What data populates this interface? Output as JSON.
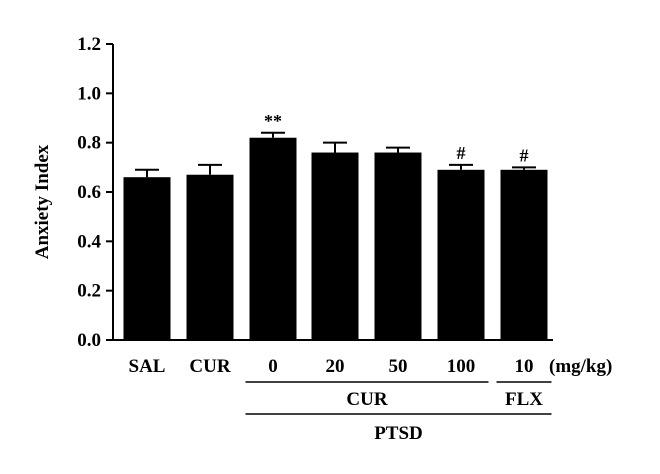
{
  "chart_data": {
    "type": "bar",
    "title": "",
    "xlabel": "",
    "ylabel": "Anxiety Index",
    "ylim": [
      0.0,
      1.2
    ],
    "yticks": [
      "0.0",
      "0.2",
      "0.4",
      "0.6",
      "0.8",
      "1.0",
      "1.2"
    ],
    "categories": [
      "SAL",
      "CUR",
      "0",
      "20",
      "50",
      "100",
      "10"
    ],
    "values": [
      0.66,
      0.67,
      0.82,
      0.76,
      0.76,
      0.69,
      0.69
    ],
    "errors": [
      0.03,
      0.04,
      0.02,
      0.04,
      0.02,
      0.02,
      0.01
    ],
    "annotations": [
      "",
      "",
      "**",
      "",
      "",
      "#",
      "#"
    ],
    "unit_label": "(mg/kg)",
    "groups": [
      {
        "label": "CUR",
        "from": 2,
        "to": 5
      },
      {
        "label": "FLX",
        "from": 6,
        "to": 6
      },
      {
        "label": "PTSD",
        "from": 2,
        "to": 6
      }
    ],
    "bar_color": "#000000",
    "grid": false,
    "legend": "none"
  }
}
